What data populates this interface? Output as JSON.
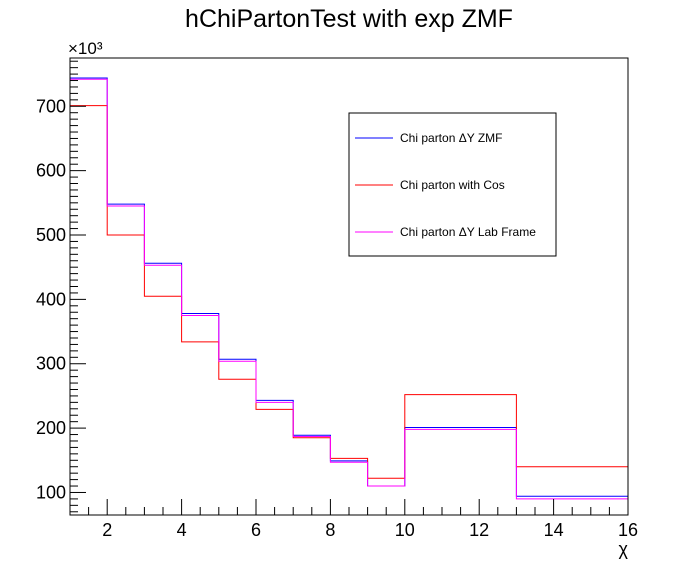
{
  "chart_data": {
    "type": "histogram-step",
    "title": "hChiPartonTest with exp ZMF",
    "xlabel": "χ",
    "ylabel": "",
    "y_multiplier": "×10³",
    "xlim": [
      1,
      16
    ],
    "ylim": [
      65000,
      775000
    ],
    "x_ticks": [
      2,
      4,
      6,
      8,
      10,
      12,
      14,
      16
    ],
    "y_ticks": [
      100,
      200,
      300,
      400,
      500,
      600,
      700
    ],
    "bin_edges": [
      1,
      2,
      3,
      4,
      5,
      6,
      7,
      8,
      9,
      10,
      13,
      16
    ],
    "series": [
      {
        "name": "Chi parton ΔY ZMF",
        "color": "#0000ff",
        "values": [
          744000,
          548000,
          456000,
          378000,
          307000,
          243000,
          189000,
          149000,
          110000,
          201000,
          94000
        ]
      },
      {
        "name": "Chi parton with Cos",
        "color": "#ff0000",
        "values": [
          701000,
          500000,
          405000,
          334000,
          276000,
          229000,
          185000,
          153000,
          122000,
          252000,
          140000
        ]
      },
      {
        "name": "Chi parton ΔY Lab Frame",
        "color": "#ff00ff",
        "values": [
          742000,
          545000,
          453000,
          375000,
          304000,
          240000,
          187000,
          147000,
          110000,
          198000,
          90000
        ]
      }
    ],
    "legend_position": "top-right",
    "grid": false
  }
}
